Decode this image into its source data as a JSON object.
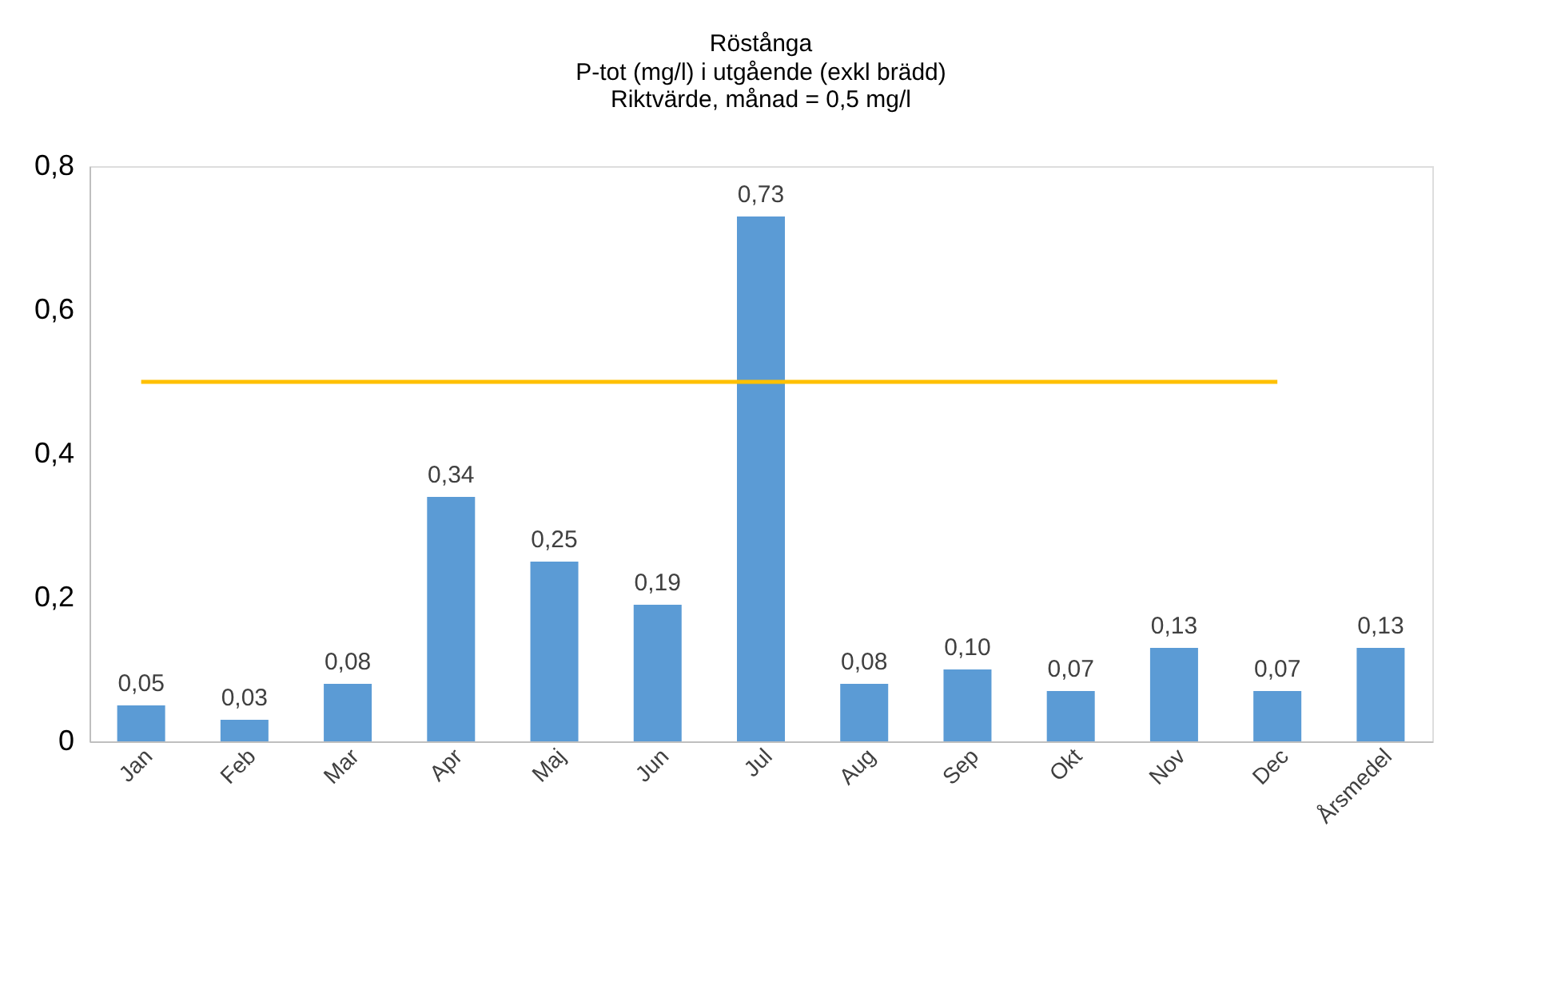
{
  "chart_data": {
    "type": "bar",
    "title": "Röstånga",
    "subtitle": "P-tot (mg/l) i utgående (exkl brädd)\nRiktvärde, månad = 0,5 mg/l",
    "categories": [
      "Jan",
      "Feb",
      "Mar",
      "Apr",
      "Maj",
      "Jun",
      "Jul",
      "Aug",
      "Sep",
      "Okt",
      "Nov",
      "Dec",
      "Årsmedel"
    ],
    "series": [
      {
        "color": "#5b9bd5",
        "values": [
          0.05,
          0.03,
          0.08,
          0.34,
          0.25,
          0.19,
          0.73,
          0.08,
          0.1,
          0.07,
          0.13,
          0.07,
          0.13
        ],
        "value_labels": [
          "0,05",
          "0,03",
          "0,08",
          "0,34",
          "0,25",
          "0,19",
          "0,73",
          "0,08",
          "0,10",
          "0,07",
          "0,13",
          "0,07",
          "0,13"
        ]
      },
      {
        "type": "line",
        "color": "#ffc000",
        "values": [
          0.5,
          0.5,
          0.5,
          0.5,
          0.5,
          0.5,
          0.5,
          0.5,
          0.5,
          0.5,
          0.5,
          0.5,
          null
        ]
      }
    ],
    "ylim": [
      0,
      0.8
    ],
    "yticks": [
      {
        "value": 0,
        "label": "0"
      },
      {
        "value": 0.2,
        "label": "0,2"
      },
      {
        "value": 0.4,
        "label": "0,4"
      },
      {
        "value": 0.6,
        "label": "0,6"
      },
      {
        "value": 0.8,
        "label": "0,8"
      }
    ],
    "marker": "none",
    "line_style": "solid"
  }
}
